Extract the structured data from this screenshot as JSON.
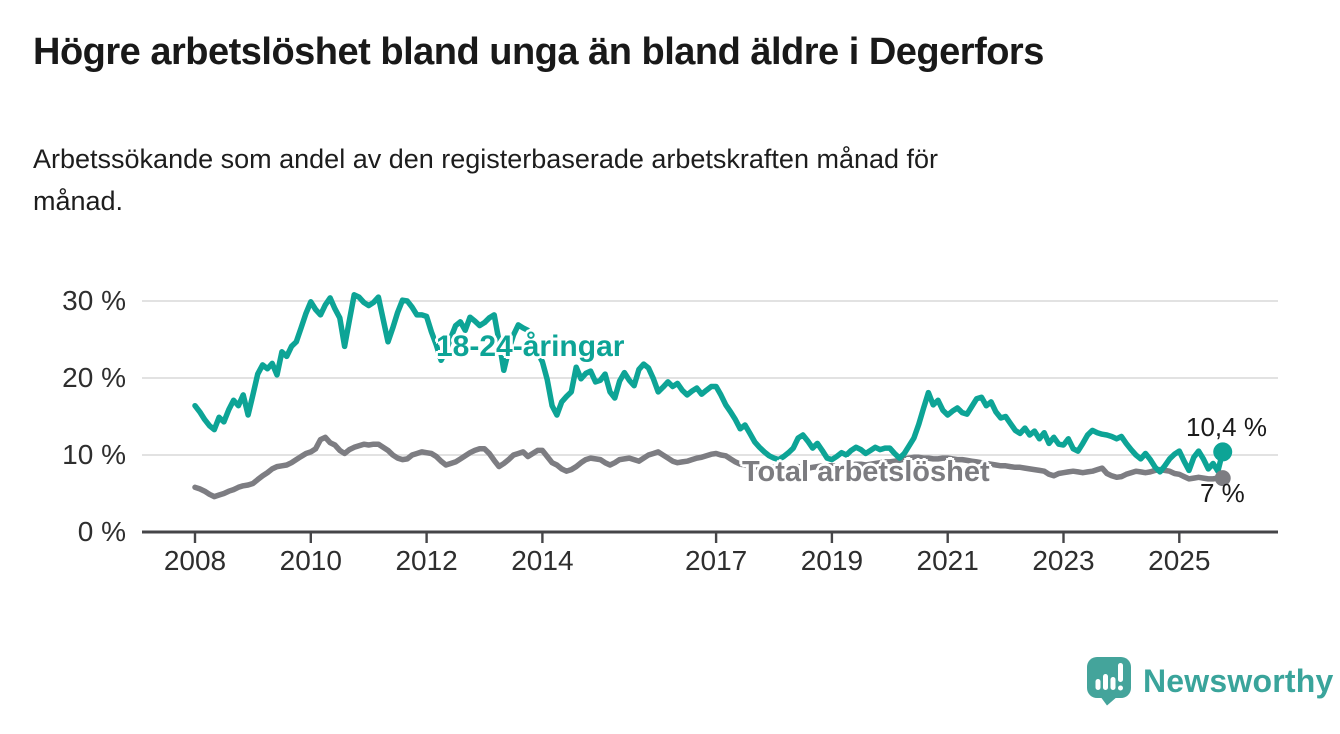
{
  "header": {
    "title": "Högre arbetslöshet bland unga än bland äldre i Degerfors",
    "subtitle": "Arbetssökande som andel av den registerbaserade arbetskraften månad för månad."
  },
  "branding": {
    "name": "Newsworthy",
    "icon": "speech-bubble-with-bar-chart-and-exclamation",
    "icon_color": "#44a49b",
    "text_color": "#3aa49b"
  },
  "colors": {
    "young_line": "#0da496",
    "total_line": "#7d7d82",
    "gridline": "#d8d8d8",
    "axis": "#454548",
    "tick_text": "#2e2e2e"
  },
  "chart_data": {
    "type": "line",
    "title": "Högre arbetslöshet bland unga än bland äldre i Degerfors",
    "subtitle": "Arbetssökande som andel av den registerbaserade arbetskraften månad för månad.",
    "unit": "%",
    "x_start_year": 2008,
    "x_step_months": 1,
    "x_end": "2025-10",
    "grid": "horizontal",
    "legend_position": "inline-labels",
    "ylim": [
      0,
      32
    ],
    "xlim_years": [
      2007.1,
      2026.7
    ],
    "y_ticks": [
      {
        "value": 0,
        "label": "0 %"
      },
      {
        "value": 10,
        "label": "10 %"
      },
      {
        "value": 20,
        "label": "20 %"
      },
      {
        "value": 30,
        "label": "30 %"
      }
    ],
    "x_ticks": [
      {
        "year": 2008,
        "label": "2008"
      },
      {
        "year": 2010,
        "label": "2010"
      },
      {
        "year": 2012,
        "label": "2012"
      },
      {
        "year": 2014,
        "label": "2014"
      },
      {
        "year": 2017,
        "label": "2017"
      },
      {
        "year": 2019,
        "label": "2019"
      },
      {
        "year": 2021,
        "label": "2021"
      },
      {
        "year": 2023,
        "label": "2023"
      },
      {
        "year": 2025,
        "label": "2025"
      }
    ],
    "series": [
      {
        "name": "18-24-åringar",
        "color": "#0da496",
        "end_label": "10,4 %",
        "end_value": 10.4,
        "values": [
          16.4,
          15.6,
          14.6,
          13.8,
          13.3,
          14.9,
          14.3,
          15.9,
          17.1,
          16.4,
          17.8,
          15.2,
          17.8,
          20.5,
          21.7,
          21.2,
          21.9,
          20.4,
          23.4,
          22.8,
          24.1,
          24.7,
          26.5,
          28.4,
          29.9,
          28.9,
          28.2,
          29.5,
          30.4,
          29.0,
          27.8,
          24.1,
          27.5,
          30.8,
          30.5,
          29.8,
          29.4,
          29.8,
          30.5,
          27.6,
          24.7,
          26.5,
          28.5,
          30.1,
          30.0,
          29.2,
          28.2,
          28.2,
          28.0,
          26.0,
          24.3,
          22.3,
          23.5,
          25.2,
          26.8,
          27.3,
          26.2,
          27.9,
          27.4,
          26.8,
          27.2,
          27.8,
          28.2,
          24.8,
          21.0,
          23.6,
          25.6,
          26.9,
          26.5,
          26.2,
          24.8,
          23.3,
          22.1,
          19.8,
          16.4,
          15.2,
          16.9,
          17.6,
          18.2,
          21.4,
          19.9,
          20.6,
          20.9,
          19.5,
          19.7,
          20.5,
          18.2,
          17.4,
          19.6,
          20.7,
          19.7,
          19.0,
          21.1,
          21.8,
          21.3,
          19.9,
          18.2,
          18.8,
          19.5,
          18.9,
          19.3,
          18.4,
          17.8,
          18.3,
          18.7,
          17.9,
          18.4,
          18.9,
          18.9,
          17.8,
          16.5,
          15.6,
          14.6,
          13.4,
          13.9,
          12.8,
          11.7,
          11.0,
          10.4,
          9.9,
          9.6,
          9.4,
          9.8,
          10.3,
          10.9,
          12.2,
          12.6,
          11.8,
          10.9,
          11.5,
          10.6,
          9.6,
          9.4,
          9.8,
          10.3,
          10.0,
          10.6,
          11.0,
          10.7,
          10.2,
          10.6,
          11.0,
          10.7,
          10.9,
          10.9,
          10.2,
          9.6,
          10.2,
          11.2,
          12.2,
          14.0,
          16.1,
          18.1,
          16.5,
          17.1,
          15.8,
          15.2,
          15.7,
          16.1,
          15.5,
          15.3,
          16.3,
          17.3,
          17.5,
          16.4,
          16.9,
          15.6,
          14.8,
          15.0,
          14.1,
          13.2,
          12.8,
          13.5,
          12.6,
          13.1,
          12.1,
          12.9,
          11.5,
          12.3,
          11.4,
          11.3,
          12.1,
          10.8,
          10.5,
          11.5,
          12.6,
          13.2,
          12.9,
          12.7,
          12.6,
          12.4,
          12.1,
          12.4,
          11.5,
          10.7,
          10.0,
          9.5,
          10.2,
          9.4,
          8.4,
          7.8,
          8.6,
          9.5,
          10.1,
          10.5,
          9.2,
          8.0,
          9.7,
          10.5,
          9.5,
          8.2,
          8.9,
          7.9,
          10.4
        ]
      },
      {
        "name": "Total arbetslöshet",
        "color": "#7d7d82",
        "end_label": "7 %",
        "end_value": 7.0,
        "values": [
          5.8,
          5.6,
          5.3,
          4.9,
          4.6,
          4.8,
          5.0,
          5.3,
          5.5,
          5.8,
          6.0,
          6.1,
          6.3,
          6.8,
          7.3,
          7.7,
          8.2,
          8.5,
          8.6,
          8.7,
          9.0,
          9.4,
          9.8,
          10.2,
          10.4,
          10.8,
          12.0,
          12.3,
          11.6,
          11.3,
          10.6,
          10.2,
          10.7,
          11.0,
          11.2,
          11.4,
          11.3,
          11.4,
          11.4,
          11.0,
          10.6,
          10.0,
          9.6,
          9.4,
          9.5,
          10.0,
          10.2,
          10.4,
          10.3,
          10.2,
          9.8,
          9.2,
          8.7,
          8.9,
          9.1,
          9.5,
          9.9,
          10.3,
          10.6,
          10.8,
          10.8,
          10.2,
          9.3,
          8.5,
          8.9,
          9.4,
          10.0,
          10.2,
          10.4,
          9.8,
          10.2,
          10.6,
          10.6,
          9.8,
          9.0,
          8.7,
          8.2,
          7.9,
          8.1,
          8.5,
          9.0,
          9.4,
          9.6,
          9.5,
          9.4,
          9.0,
          8.7,
          9.0,
          9.4,
          9.5,
          9.6,
          9.4,
          9.2,
          9.6,
          10.0,
          10.2,
          10.4,
          10.0,
          9.6,
          9.2,
          9.0,
          9.1,
          9.2,
          9.4,
          9.6,
          9.7,
          9.9,
          10.1,
          10.2,
          10.0,
          9.9,
          9.5,
          9.1,
          8.8,
          8.7,
          8.5,
          8.4,
          8.3,
          8.3,
          8.4,
          8.4,
          8.3,
          8.2,
          8.3,
          8.4,
          8.5,
          8.4,
          8.3,
          8.4,
          8.5,
          8.6,
          8.6,
          8.6,
          8.5,
          8.5,
          8.6,
          8.7,
          8.8,
          8.8,
          8.7,
          8.8,
          8.9,
          9.0,
          9.1,
          9.1,
          9.2,
          9.3,
          9.5,
          9.6,
          9.7,
          9.7,
          9.6,
          9.6,
          9.5,
          9.5,
          9.6,
          9.6,
          9.5,
          9.4,
          9.4,
          9.3,
          9.2,
          9.1,
          9.0,
          8.9,
          8.8,
          8.7,
          8.6,
          8.6,
          8.5,
          8.4,
          8.4,
          8.3,
          8.2,
          8.1,
          8.0,
          7.9,
          7.5,
          7.3,
          7.6,
          7.7,
          7.8,
          7.9,
          7.8,
          7.7,
          7.8,
          7.9,
          8.1,
          8.3,
          7.6,
          7.3,
          7.1,
          7.2,
          7.5,
          7.7,
          7.9,
          7.8,
          7.7,
          7.8,
          8.0,
          8.1,
          8.0,
          7.9,
          7.6,
          7.5,
          7.2,
          6.9,
          7.0,
          7.1,
          7.0,
          6.9,
          6.9,
          7.0,
          7.0
        ]
      }
    ]
  }
}
